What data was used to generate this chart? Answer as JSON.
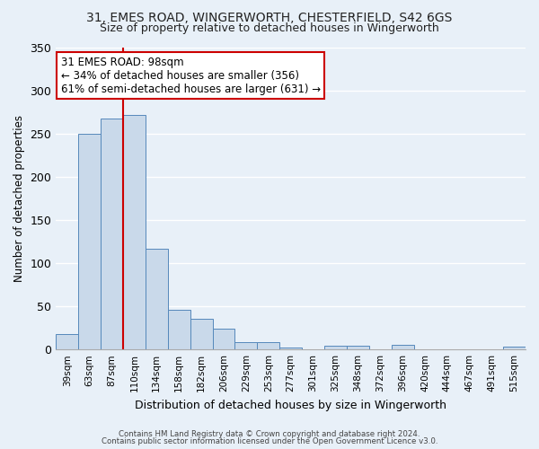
{
  "title": "31, EMES ROAD, WINGERWORTH, CHESTERFIELD, S42 6GS",
  "subtitle": "Size of property relative to detached houses in Wingerworth",
  "bar_labels": [
    "39sqm",
    "63sqm",
    "87sqm",
    "110sqm",
    "134sqm",
    "158sqm",
    "182sqm",
    "206sqm",
    "229sqm",
    "253sqm",
    "277sqm",
    "301sqm",
    "325sqm",
    "348sqm",
    "372sqm",
    "396sqm",
    "420sqm",
    "444sqm",
    "467sqm",
    "491sqm",
    "515sqm"
  ],
  "bar_values": [
    18,
    250,
    267,
    272,
    117,
    46,
    36,
    24,
    9,
    9,
    2,
    0,
    4,
    4,
    0,
    5,
    0,
    0,
    0,
    0,
    3
  ],
  "bar_color": "#c9d9ea",
  "bar_edge_color": "#5588bb",
  "ylim": [
    0,
    350
  ],
  "yticks": [
    0,
    50,
    100,
    150,
    200,
    250,
    300,
    350
  ],
  "ylabel": "Number of detached properties",
  "xlabel": "Distribution of detached houses by size in Wingerworth",
  "vline_color": "#cc0000",
  "annotation_title": "31 EMES ROAD: 98sqm",
  "annotation_line1": "← 34% of detached houses are smaller (356)",
  "annotation_line2": "61% of semi-detached houses are larger (631) →",
  "annotation_box_color": "#ffffff",
  "annotation_box_edge": "#cc0000",
  "footer1": "Contains HM Land Registry data © Crown copyright and database right 2024.",
  "footer2": "Contains public sector information licensed under the Open Government Licence v3.0.",
  "background_color": "#e8f0f8",
  "plot_background": "#e8f0f8",
  "grid_color": "#ffffff",
  "title_fontsize": 10,
  "subtitle_fontsize": 9
}
